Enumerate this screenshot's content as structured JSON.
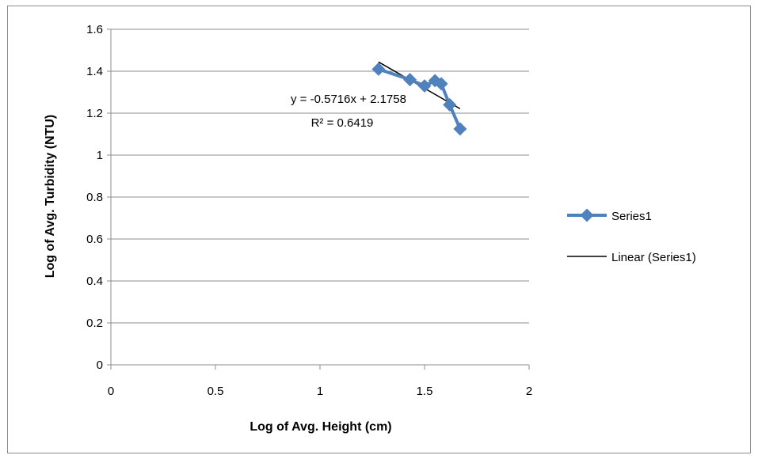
{
  "chart_data": {
    "type": "scatter",
    "title": "",
    "xlabel": "Log of Avg. Height (cm)",
    "ylabel": "Log of Avg. Turbidity (NTU)",
    "xlim": [
      0,
      2
    ],
    "ylim": [
      0,
      1.6
    ],
    "x_ticks": [
      "0",
      "0.5",
      "1",
      "1.5",
      "2"
    ],
    "y_ticks": [
      "0",
      "0.2",
      "0.4",
      "0.6",
      "0.8",
      "1",
      "1.2",
      "1.4",
      "1.6"
    ],
    "grid": "horizontal",
    "legend_position": "right",
    "series": [
      {
        "name": "Series1",
        "color": "#4f81bd",
        "marker": "diamond",
        "points": [
          {
            "x": 1.28,
            "y": 1.41
          },
          {
            "x": 1.43,
            "y": 1.36
          },
          {
            "x": 1.5,
            "y": 1.33
          },
          {
            "x": 1.55,
            "y": 1.355
          },
          {
            "x": 1.58,
            "y": 1.34
          },
          {
            "x": 1.62,
            "y": 1.24
          },
          {
            "x": 1.67,
            "y": 1.125
          }
        ]
      }
    ],
    "trendline": {
      "name": "Linear (Series1)",
      "color": "#000000",
      "slope": -0.5716,
      "intercept": 2.1758,
      "x_range": [
        1.28,
        1.67
      ],
      "equation_label": "y = -0.5716x + 2.1758",
      "r2_label": "R² = 0.6419"
    }
  }
}
